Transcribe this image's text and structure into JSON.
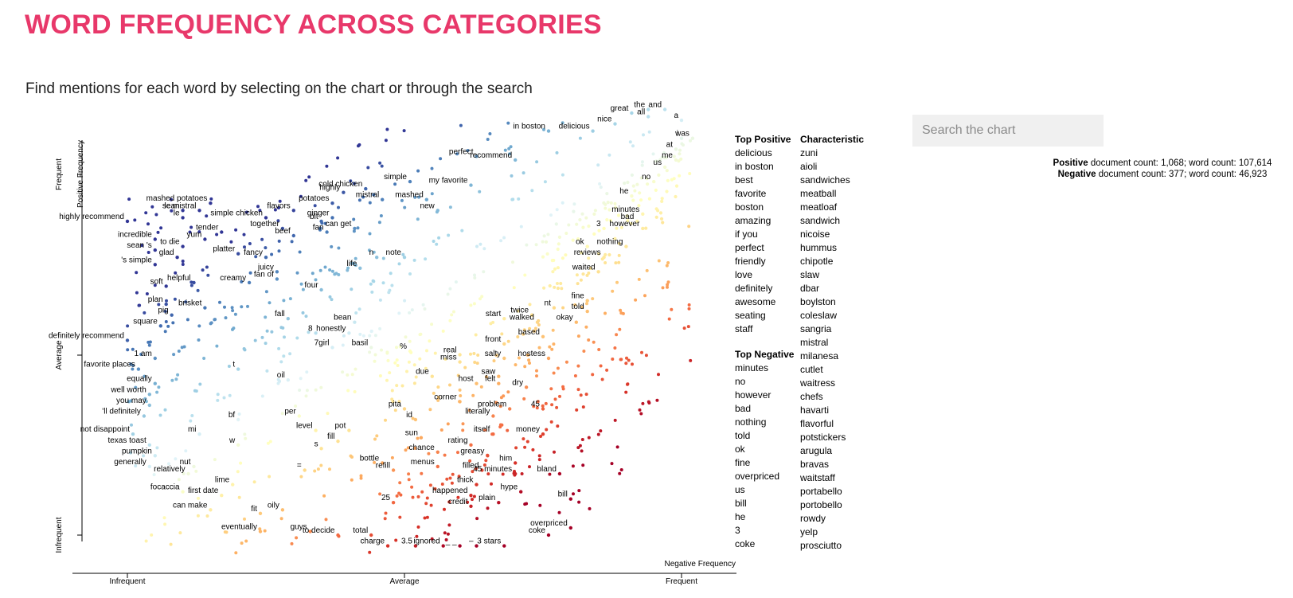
{
  "page": {
    "title": "WORD FREQUENCY ACROSS CATEGORIES",
    "subtitle": "Find mentions for each word by selecting on the chart or through the search"
  },
  "colors": {
    "title": "#e8386a",
    "positive": "#313695",
    "neutral": "#ffffbf",
    "negative": "#a50026"
  },
  "search": {
    "placeholder": "Search the chart",
    "value": ""
  },
  "counts": {
    "positive_label": "Positive",
    "positive_text": "document count: 1,068; word count: 107,614",
    "negative_label": "Negative",
    "negative_text": "document count: 377; word count: 46,923"
  },
  "lists": {
    "top_positive_title": "Top Positive",
    "top_positive": [
      "delicious",
      "in boston",
      "best",
      "favorite",
      "boston",
      "amazing",
      "if you",
      "perfect",
      "friendly",
      "love",
      "definitely",
      "awesome",
      "seating",
      "staff"
    ],
    "top_negative_title": "Top Negative",
    "top_negative": [
      "minutes",
      "no",
      "however",
      "bad",
      "nothing",
      "told",
      "ok",
      "fine",
      "overpriced",
      "us",
      "bill",
      "he",
      "3",
      "coke"
    ],
    "characteristic_title": "Characteristic",
    "characteristic": [
      "zuni",
      "aioli",
      "sandwiches",
      "meatball",
      "meatloaf",
      "sandwich",
      "nicoise",
      "hummus",
      "chipotle",
      "slaw",
      "dbar",
      "boylston",
      "coleslaw",
      "sangria",
      "mistral",
      "milanesa",
      "cutlet",
      "waitress",
      "chefs",
      "havarti",
      "flavorful",
      "potstickers",
      "arugula",
      "bravas",
      "waitstaff",
      "portabello",
      "portobello",
      "rowdy",
      "yelp",
      "prosciutto"
    ]
  },
  "chart_data": {
    "type": "scatter",
    "x_axis_label": "Negative Frequency",
    "y_axis_label": "Positive Frequency",
    "x_ticks": [
      "Infrequent",
      "Average",
      "Frequent"
    ],
    "y_ticks": [
      "Infrequent",
      "Average",
      "Frequent"
    ],
    "x_range": [
      0,
      1
    ],
    "y_range": [
      0,
      1
    ],
    "color_scale": "RdYlBu (red = negative-associated, blue = positive-associated)",
    "labeled_terms": [
      {
        "term": "sean",
        "x": 0.1,
        "y": 0.9
      },
      {
        "term": "highly recommend",
        "x": 0.0,
        "y": 0.87
      },
      {
        "term": "le",
        "x": 0.1,
        "y": 0.88
      },
      {
        "term": "mashed potatoes",
        "x": 0.15,
        "y": 0.92
      },
      {
        "term": "le mistral",
        "x": 0.13,
        "y": 0.9
      },
      {
        "term": "flavors",
        "x": 0.3,
        "y": 0.9
      },
      {
        "term": "simple chicken",
        "x": 0.25,
        "y": 0.88
      },
      {
        "term": "incredible",
        "x": 0.05,
        "y": 0.82
      },
      {
        "term": "sean 's",
        "x": 0.05,
        "y": 0.79
      },
      {
        "term": "to die",
        "x": 0.1,
        "y": 0.8
      },
      {
        "term": "tender",
        "x": 0.17,
        "y": 0.84
      },
      {
        "term": "yum",
        "x": 0.14,
        "y": 0.82
      },
      {
        "term": "together",
        "x": 0.28,
        "y": 0.85
      },
      {
        "term": "beef",
        "x": 0.3,
        "y": 0.83
      },
      {
        "term": "blt",
        "x": 0.35,
        "y": 0.87
      },
      {
        "term": "fan",
        "x": 0.36,
        "y": 0.84
      },
      {
        "term": "ginger",
        "x": 0.37,
        "y": 0.88
      },
      {
        "term": "can get",
        "x": 0.41,
        "y": 0.85
      },
      {
        "term": "highly",
        "x": 0.39,
        "y": 0.95
      },
      {
        "term": "potatoes",
        "x": 0.37,
        "y": 0.92
      },
      {
        "term": "cold chicken",
        "x": 0.43,
        "y": 0.96
      },
      {
        "term": "mistral",
        "x": 0.46,
        "y": 0.93
      },
      {
        "term": "simple",
        "x": 0.51,
        "y": 0.98
      },
      {
        "term": "mashed",
        "x": 0.54,
        "y": 0.93
      },
      {
        "term": "new",
        "x": 0.56,
        "y": 0.9
      },
      {
        "term": "perfect",
        "x": 0.63,
        "y": 1.05
      },
      {
        "term": "my favorite",
        "x": 0.62,
        "y": 0.97
      },
      {
        "term": "recommend",
        "x": 0.7,
        "y": 1.04
      },
      {
        "term": "in boston",
        "x": 0.76,
        "y": 1.12
      },
      {
        "term": "delicious",
        "x": 0.84,
        "y": 1.12
      },
      {
        "term": "nice",
        "x": 0.88,
        "y": 1.14
      },
      {
        "term": "great",
        "x": 0.91,
        "y": 1.17
      },
      {
        "term": "all",
        "x": 0.94,
        "y": 1.16
      },
      {
        "term": "the",
        "x": 0.94,
        "y": 1.18
      },
      {
        "term": "and",
        "x": 0.97,
        "y": 1.18
      },
      {
        "term": "a",
        "x": 1.0,
        "y": 1.15
      },
      {
        "term": "i",
        "x": 1.0,
        "y": 1.1
      },
      {
        "term": "was",
        "x": 1.02,
        "y": 1.1
      },
      {
        "term": "at",
        "x": 0.99,
        "y": 1.07
      },
      {
        "term": "me",
        "x": 0.99,
        "y": 1.04
      },
      {
        "term": "us",
        "x": 0.97,
        "y": 1.02
      },
      {
        "term": "no",
        "x": 0.95,
        "y": 0.98
      },
      {
        "term": "he",
        "x": 0.91,
        "y": 0.94
      },
      {
        "term": "minutes",
        "x": 0.93,
        "y": 0.89
      },
      {
        "term": "bad",
        "x": 0.92,
        "y": 0.87
      },
      {
        "term": "however",
        "x": 0.93,
        "y": 0.85
      },
      {
        "term": "3",
        "x": 0.86,
        "y": 0.85
      },
      {
        "term": "glad",
        "x": 0.09,
        "y": 0.77
      },
      {
        "term": "platter",
        "x": 0.2,
        "y": 0.78
      },
      {
        "term": "'s simple",
        "x": 0.05,
        "y": 0.75
      },
      {
        "term": "fancy",
        "x": 0.25,
        "y": 0.77
      },
      {
        "term": "juicy",
        "x": 0.27,
        "y": 0.73
      },
      {
        "term": "fan of",
        "x": 0.27,
        "y": 0.71
      },
      {
        "term": "n",
        "x": 0.45,
        "y": 0.77
      },
      {
        "term": "note",
        "x": 0.5,
        "y": 0.77
      },
      {
        "term": "life",
        "x": 0.42,
        "y": 0.74
      },
      {
        "term": "ok",
        "x": 0.83,
        "y": 0.8
      },
      {
        "term": "nothing",
        "x": 0.9,
        "y": 0.8
      },
      {
        "term": "reviews",
        "x": 0.86,
        "y": 0.77
      },
      {
        "term": "waited",
        "x": 0.85,
        "y": 0.73
      },
      {
        "term": "soft",
        "x": 0.07,
        "y": 0.69
      },
      {
        "term": "helpful",
        "x": 0.12,
        "y": 0.7
      },
      {
        "term": "creamy",
        "x": 0.22,
        "y": 0.7
      },
      {
        "term": "four",
        "x": 0.35,
        "y": 0.68
      },
      {
        "term": "plan",
        "x": 0.07,
        "y": 0.64
      },
      {
        "term": "brisket",
        "x": 0.14,
        "y": 0.63
      },
      {
        "term": "pig",
        "x": 0.08,
        "y": 0.61
      },
      {
        "term": "fall",
        "x": 0.29,
        "y": 0.6
      },
      {
        "term": "bean",
        "x": 0.41,
        "y": 0.59
      },
      {
        "term": "honestly",
        "x": 0.4,
        "y": 0.56
      },
      {
        "term": "square",
        "x": 0.06,
        "y": 0.58
      },
      {
        "term": "8",
        "x": 0.34,
        "y": 0.56
      },
      {
        "term": "7girl",
        "x": 0.37,
        "y": 0.52
      },
      {
        "term": "basil",
        "x": 0.44,
        "y": 0.52
      },
      {
        "term": "definitely recommend",
        "x": 0.0,
        "y": 0.54
      },
      {
        "term": "%",
        "x": 0.51,
        "y": 0.51
      },
      {
        "term": "fine",
        "x": 0.83,
        "y": 0.65
      },
      {
        "term": "told",
        "x": 0.83,
        "y": 0.62
      },
      {
        "term": "okay",
        "x": 0.81,
        "y": 0.59
      },
      {
        "term": "nt",
        "x": 0.77,
        "y": 0.63
      },
      {
        "term": "twice",
        "x": 0.73,
        "y": 0.61
      },
      {
        "term": "start",
        "x": 0.68,
        "y": 0.6
      },
      {
        "term": "walked",
        "x": 0.74,
        "y": 0.59
      },
      {
        "term": "based",
        "x": 0.75,
        "y": 0.55
      },
      {
        "term": "front",
        "x": 0.68,
        "y": 0.53
      },
      {
        "term": "real",
        "x": 0.6,
        "y": 0.5
      },
      {
        "term": "miss",
        "x": 0.6,
        "y": 0.48
      },
      {
        "term": "salty",
        "x": 0.68,
        "y": 0.49
      },
      {
        "term": "hostess",
        "x": 0.76,
        "y": 0.49
      },
      {
        "term": "1 am",
        "x": 0.05,
        "y": 0.49
      },
      {
        "term": "favorite places",
        "x": 0.02,
        "y": 0.46
      },
      {
        "term": "t",
        "x": 0.2,
        "y": 0.46
      },
      {
        "term": "oil",
        "x": 0.29,
        "y": 0.43
      },
      {
        "term": "due",
        "x": 0.55,
        "y": 0.44
      },
      {
        "term": "host",
        "x": 0.63,
        "y": 0.42
      },
      {
        "term": "saw",
        "x": 0.67,
        "y": 0.44
      },
      {
        "term": "felt",
        "x": 0.67,
        "y": 0.42
      },
      {
        "term": "dry",
        "x": 0.72,
        "y": 0.41
      },
      {
        "term": "equally",
        "x": 0.05,
        "y": 0.42
      },
      {
        "term": "well worth",
        "x": 0.04,
        "y": 0.39
      },
      {
        "term": "corner",
        "x": 0.6,
        "y": 0.37
      },
      {
        "term": "pita",
        "x": 0.5,
        "y": 0.35
      },
      {
        "term": "problem",
        "x": 0.69,
        "y": 0.35
      },
      {
        "term": "45",
        "x": 0.75,
        "y": 0.35
      },
      {
        "term": "you may",
        "x": 0.04,
        "y": 0.36
      },
      {
        "term": "'ll definitely",
        "x": 0.03,
        "y": 0.33
      },
      {
        "term": "bf",
        "x": 0.2,
        "y": 0.32
      },
      {
        "term": "per",
        "x": 0.31,
        "y": 0.33
      },
      {
        "term": "literally",
        "x": 0.66,
        "y": 0.33
      },
      {
        "term": "id",
        "x": 0.52,
        "y": 0.32
      },
      {
        "term": "not disappoint",
        "x": 0.01,
        "y": 0.28
      },
      {
        "term": "texas toast",
        "x": 0.04,
        "y": 0.25
      },
      {
        "term": "mi",
        "x": 0.13,
        "y": 0.28
      },
      {
        "term": "level",
        "x": 0.34,
        "y": 0.29
      },
      {
        "term": "pot",
        "x": 0.4,
        "y": 0.29
      },
      {
        "term": "itself",
        "x": 0.66,
        "y": 0.28
      },
      {
        "term": "money",
        "x": 0.75,
        "y": 0.28
      },
      {
        "term": "sun",
        "x": 0.53,
        "y": 0.27
      },
      {
        "term": "w",
        "x": 0.2,
        "y": 0.25
      },
      {
        "term": "fill",
        "x": 0.38,
        "y": 0.26
      },
      {
        "term": "s",
        "x": 0.35,
        "y": 0.24
      },
      {
        "term": "rating",
        "x": 0.62,
        "y": 0.25
      },
      {
        "term": "pumpkin",
        "x": 0.05,
        "y": 0.22
      },
      {
        "term": "generally",
        "x": 0.04,
        "y": 0.19
      },
      {
        "term": "chance",
        "x": 0.56,
        "y": 0.23
      },
      {
        "term": "greasy",
        "x": 0.65,
        "y": 0.22
      },
      {
        "term": "nut",
        "x": 0.12,
        "y": 0.19
      },
      {
        "term": "bottle",
        "x": 0.46,
        "y": 0.2
      },
      {
        "term": "menus",
        "x": 0.56,
        "y": 0.19
      },
      {
        "term": "him",
        "x": 0.7,
        "y": 0.2
      },
      {
        "term": "=",
        "x": 0.32,
        "y": 0.18
      },
      {
        "term": "refill",
        "x": 0.48,
        "y": 0.18
      },
      {
        "term": "filled",
        "x": 0.64,
        "y": 0.18
      },
      {
        "term": "45 minutes",
        "x": 0.7,
        "y": 0.17
      },
      {
        "term": "bland",
        "x": 0.78,
        "y": 0.17
      },
      {
        "term": "relatively",
        "x": 0.11,
        "y": 0.17
      },
      {
        "term": "lime",
        "x": 0.19,
        "y": 0.14
      },
      {
        "term": "thick",
        "x": 0.63,
        "y": 0.14
      },
      {
        "term": "hype",
        "x": 0.71,
        "y": 0.12
      },
      {
        "term": "focaccia",
        "x": 0.1,
        "y": 0.12
      },
      {
        "term": "first date",
        "x": 0.17,
        "y": 0.11
      },
      {
        "term": "happened",
        "x": 0.62,
        "y": 0.11
      },
      {
        "term": "bill",
        "x": 0.8,
        "y": 0.1
      },
      {
        "term": "25",
        "x": 0.48,
        "y": 0.09
      },
      {
        "term": "credit",
        "x": 0.62,
        "y": 0.08
      },
      {
        "term": "plain",
        "x": 0.67,
        "y": 0.09
      },
      {
        "term": "can make",
        "x": 0.15,
        "y": 0.07
      },
      {
        "term": "fit",
        "x": 0.24,
        "y": 0.06
      },
      {
        "term": "oily",
        "x": 0.28,
        "y": 0.07
      },
      {
        "term": "eventually",
        "x": 0.24,
        "y": 0.01
      },
      {
        "term": "guys",
        "x": 0.33,
        "y": 0.01
      },
      {
        "term": "to decide",
        "x": 0.38,
        "y": 0.0
      },
      {
        "term": "total",
        "x": 0.44,
        "y": 0.0
      },
      {
        "term": "overpriced",
        "x": 0.8,
        "y": 0.02
      },
      {
        "term": "coke",
        "x": 0.76,
        "y": 0.0
      },
      {
        "term": "charge",
        "x": 0.47,
        "y": -0.03
      },
      {
        "term": "3.5",
        "x": 0.52,
        "y": -0.03
      },
      {
        "term": "ignored",
        "x": 0.57,
        "y": -0.03
      },
      {
        "term": "_ _",
        "x": 0.6,
        "y": -0.03
      },
      {
        "term": "–",
        "x": 0.63,
        "y": -0.03
      },
      {
        "term": "3 stars",
        "x": 0.68,
        "y": -0.03
      }
    ]
  }
}
